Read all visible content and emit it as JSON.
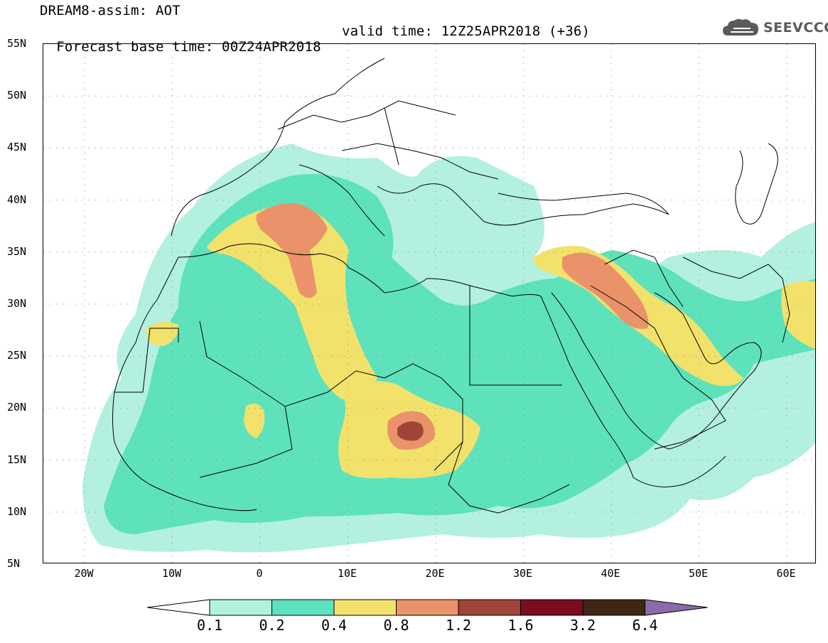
{
  "header": {
    "model_title": "DREAM8-assim: AOT",
    "base_time": "Forecast base time: 00Z24APR2018",
    "valid_time": "valid time: 12Z25APR2018 (+36)"
  },
  "logo": {
    "text": "SEEVCCC",
    "icon": "cloud-logo-icon"
  },
  "map": {
    "lat_labels": [
      "55N",
      "50N",
      "45N",
      "40N",
      "35N",
      "30N",
      "25N",
      "20N",
      "15N",
      "10N",
      "5N"
    ],
    "lon_labels": [
      "20W",
      "10W",
      "0",
      "10E",
      "20E",
      "30E",
      "40E",
      "50E",
      "60E"
    ]
  },
  "legend": {
    "levels": [
      "0.1",
      "0.2",
      "0.4",
      "0.8",
      "1.2",
      "1.6",
      "3.2",
      "6.4"
    ],
    "colors": [
      "#ffffff",
      "#b3f0e0",
      "#5ee2bc",
      "#f2e26b",
      "#ea936a",
      "#a04438",
      "#7a0d22",
      "#3f2716",
      "#8b6aa8"
    ]
  },
  "colors": {
    "ocean": "#ffffff",
    "border": "#000000"
  }
}
